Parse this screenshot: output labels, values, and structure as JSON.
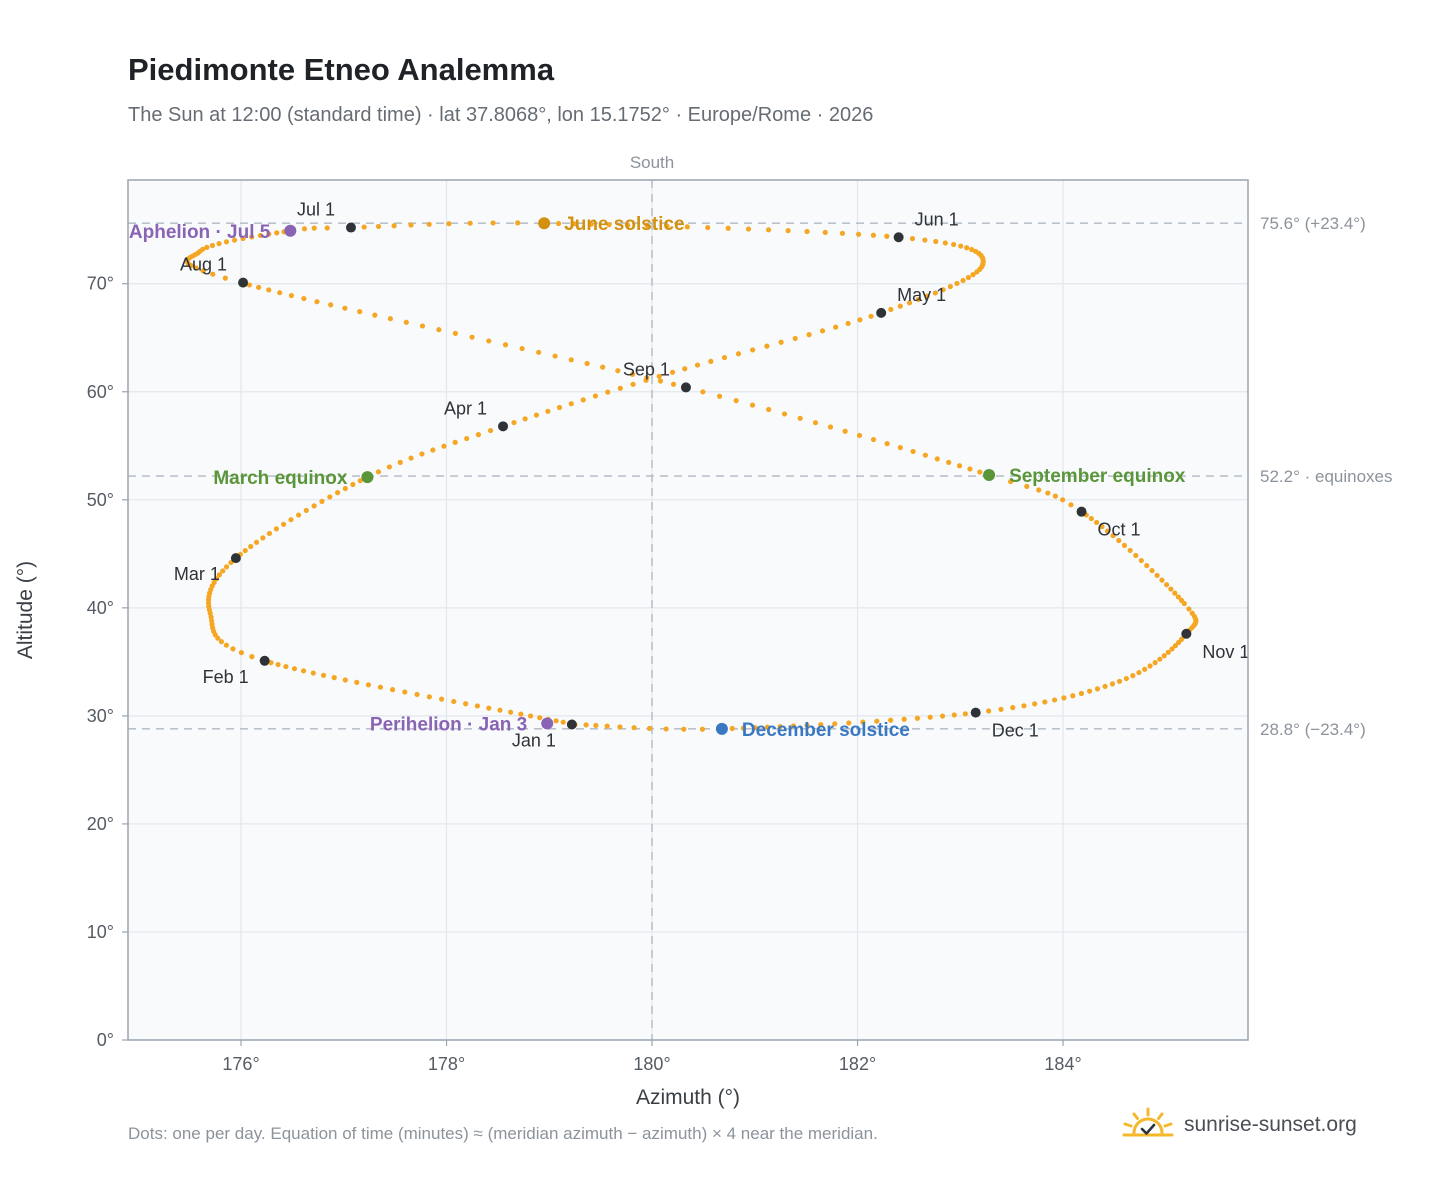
{
  "title": "Piedimonte Etneo Analemma",
  "subtitle": "The Sun at 12:00 (standard time) · lat 37.8068°, lon 15.1752° · Europe/Rome · 2026",
  "footnote": "Dots: one per day. Equation of time (minutes) ≈ (meridian azimuth − azimuth) × 4 near the meridian.",
  "brand": {
    "name": "sunrise-sunset.org",
    "logo_icon": "sun-check-logo-icon"
  },
  "colors": {
    "curve": "#f5a623",
    "month_marker": "#2f3338",
    "solstice_june": "#d4900f",
    "solstice_december": "#3a78c2",
    "equinox": "#5a9639",
    "apsis": "#8a64b4",
    "reference_line": "#b9c2cb",
    "plot_background": "#f8fafc",
    "grid": "#e2e7ec"
  },
  "chart_data": {
    "type": "scatter",
    "title": "Piedimonte Etneo Analemma",
    "xlabel": "Azimuth (°)",
    "ylabel": "Altitude (°)",
    "xlim": [
      174.9,
      185.8
    ],
    "ylim": [
      0,
      79.6
    ],
    "xticks": [
      176,
      178,
      180,
      182,
      184
    ],
    "xtick_labels": [
      "176°",
      "178°",
      "180°",
      "182°",
      "184°"
    ],
    "yticks": [
      0,
      10,
      20,
      30,
      40,
      50,
      60,
      70
    ],
    "ytick_labels": [
      "0°",
      "10°",
      "20°",
      "30°",
      "40°",
      "50°",
      "60°",
      "70°"
    ],
    "grid": true,
    "south_line": {
      "azimuth": 180,
      "label": "South"
    },
    "reference_lines": [
      {
        "altitude": 75.6,
        "label": "75.6° (+23.4°)"
      },
      {
        "altitude": 52.2,
        "label": "52.2° · equinoxes"
      },
      {
        "altitude": 28.8,
        "label": "28.8° (−23.4°)"
      }
    ],
    "curve_keypoints": [
      {
        "day": 1,
        "az": 179.25,
        "alt": 29.2
      },
      {
        "day": 32,
        "az": 176.23,
        "alt": 35.1
      },
      {
        "day": 45,
        "az": 175.7,
        "alt": 39.5
      },
      {
        "day": 60,
        "az": 175.95,
        "alt": 44.6
      },
      {
        "day": 79,
        "az": 177.23,
        "alt": 52.1
      },
      {
        "day": 91,
        "az": 178.55,
        "alt": 56.8
      },
      {
        "day": 105,
        "az": 180.2,
        "alt": 61.8
      },
      {
        "day": 121,
        "az": 182.23,
        "alt": 67.3
      },
      {
        "day": 137,
        "az": 183.22,
        "alt": 71.8
      },
      {
        "day": 152,
        "az": 182.4,
        "alt": 74.3
      },
      {
        "day": 172,
        "az": 178.95,
        "alt": 75.6
      },
      {
        "day": 182,
        "az": 177.07,
        "alt": 75.2
      },
      {
        "day": 186,
        "az": 176.48,
        "alt": 74.9
      },
      {
        "day": 199,
        "az": 175.6,
        "alt": 73.0
      },
      {
        "day": 213,
        "az": 176.0,
        "alt": 70.1
      },
      {
        "day": 244,
        "az": 180.33,
        "alt": 60.4
      },
      {
        "day": 266,
        "az": 183.28,
        "alt": 52.3
      },
      {
        "day": 274,
        "az": 184.18,
        "alt": 48.9
      },
      {
        "day": 295,
        "az": 185.18,
        "alt": 40.4
      },
      {
        "day": 305,
        "az": 185.2,
        "alt": 37.6
      },
      {
        "day": 320,
        "az": 184.55,
        "alt": 33.2
      },
      {
        "day": 335,
        "az": 183.15,
        "alt": 30.3
      },
      {
        "day": 355,
        "az": 180.68,
        "alt": 28.8
      },
      {
        "day": 365,
        "az": 179.28,
        "alt": 29.2
      }
    ],
    "month_markers": [
      {
        "label": "Jan 1",
        "az": 179.22,
        "alt": 29.2,
        "anchor": "below-left"
      },
      {
        "label": "Feb 1",
        "az": 176.23,
        "alt": 35.1,
        "anchor": "below-left"
      },
      {
        "label": "Mar 1",
        "az": 175.95,
        "alt": 44.6,
        "anchor": "below-left"
      },
      {
        "label": "Apr 1",
        "az": 178.55,
        "alt": 56.8,
        "anchor": "above-left"
      },
      {
        "label": "May 1",
        "az": 182.23,
        "alt": 67.3,
        "anchor": "above-right"
      },
      {
        "label": "Jun 1",
        "az": 182.4,
        "alt": 74.3,
        "anchor": "above-right"
      },
      {
        "label": "Jul 1",
        "az": 177.07,
        "alt": 75.2,
        "anchor": "above-left"
      },
      {
        "label": "Aug 1",
        "az": 176.02,
        "alt": 70.1,
        "anchor": "above-left"
      },
      {
        "label": "Sep 1",
        "az": 180.33,
        "alt": 60.4,
        "anchor": "above-left"
      },
      {
        "label": "Oct 1",
        "az": 184.18,
        "alt": 48.9,
        "anchor": "below-right"
      },
      {
        "label": "Nov 1",
        "az": 185.2,
        "alt": 37.6,
        "anchor": "below-right"
      },
      {
        "label": "Dec 1",
        "az": 183.15,
        "alt": 30.3,
        "anchor": "below-right"
      }
    ],
    "events": [
      {
        "label": "June solstice",
        "az": 178.95,
        "alt": 75.6,
        "color_key": "solstice_june",
        "side": "right"
      },
      {
        "label": "December solstice",
        "az": 180.68,
        "alt": 28.8,
        "color_key": "solstice_december",
        "side": "right"
      },
      {
        "label": "March equinox",
        "az": 177.23,
        "alt": 52.1,
        "color_key": "equinox",
        "side": "left"
      },
      {
        "label": "September equinox",
        "az": 183.28,
        "alt": 52.3,
        "color_key": "equinox",
        "side": "right"
      },
      {
        "label": "Aphelion · Jul 5",
        "az": 176.48,
        "alt": 74.9,
        "color_key": "apsis",
        "side": "left"
      },
      {
        "label": "Perihelion · Jan 3",
        "az": 178.98,
        "alt": 29.3,
        "color_key": "apsis",
        "side": "left"
      }
    ]
  }
}
